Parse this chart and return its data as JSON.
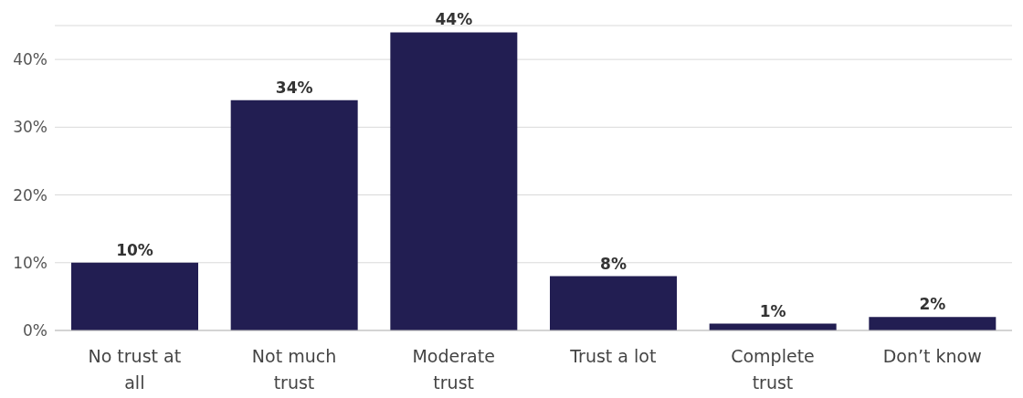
{
  "chart_data": {
    "type": "bar",
    "categories": [
      "No trust at all",
      "Not much trust",
      "Moderate trust",
      "Trust a lot",
      "Complete trust",
      "Don’t know"
    ],
    "values": [
      10,
      34,
      44,
      8,
      1,
      2
    ],
    "value_labels": [
      "10%",
      "34%",
      "44%",
      "8%",
      "1%",
      "2%"
    ],
    "color": "#221e52",
    "ylim": [
      0,
      45
    ],
    "yticks": [
      {
        "value": 0,
        "label": "0%"
      },
      {
        "value": 10,
        "label": "10%"
      },
      {
        "value": 20,
        "label": "20%"
      },
      {
        "value": 30,
        "label": "30%"
      },
      {
        "value": 40,
        "label": "40%"
      }
    ],
    "grid": "y"
  }
}
